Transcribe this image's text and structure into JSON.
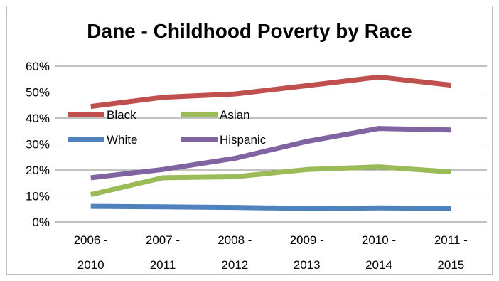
{
  "chart_data": {
    "type": "line",
    "title": "Dane - Childhood Poverty by Race",
    "xlabel": "",
    "ylabel": "",
    "categories": [
      [
        "2006 -",
        "2010"
      ],
      [
        "2007 -",
        "2011"
      ],
      [
        "2008 -",
        "2012"
      ],
      [
        "2009 -",
        "2013"
      ],
      [
        "2010 -",
        "2014"
      ],
      [
        "2011 -",
        "2015"
      ]
    ],
    "ylim": [
      0,
      0.6
    ],
    "y_ticks": [
      0,
      0.1,
      0.2,
      0.3,
      0.4,
      0.5,
      0.6
    ],
    "y_tick_labels": [
      "0%",
      "10%",
      "20%",
      "30%",
      "40%",
      "50%",
      "60%"
    ],
    "grid": "horizontal",
    "legend_position": "inside top-left",
    "series": [
      {
        "name": "Black",
        "color": "#c0504d",
        "values": [
          0.445,
          0.48,
          0.493,
          0.525,
          0.558,
          0.527
        ]
      },
      {
        "name": "Asian",
        "color": "#9bbb59",
        "values": [
          0.105,
          0.17,
          0.174,
          0.202,
          0.212,
          0.193
        ]
      },
      {
        "name": "White",
        "color": "#4f81bd",
        "values": [
          0.06,
          0.058,
          0.056,
          0.052,
          0.054,
          0.052
        ]
      },
      {
        "name": "Hispanic",
        "color": "#8064a2",
        "values": [
          0.17,
          0.202,
          0.245,
          0.31,
          0.36,
          0.354
        ]
      }
    ]
  }
}
